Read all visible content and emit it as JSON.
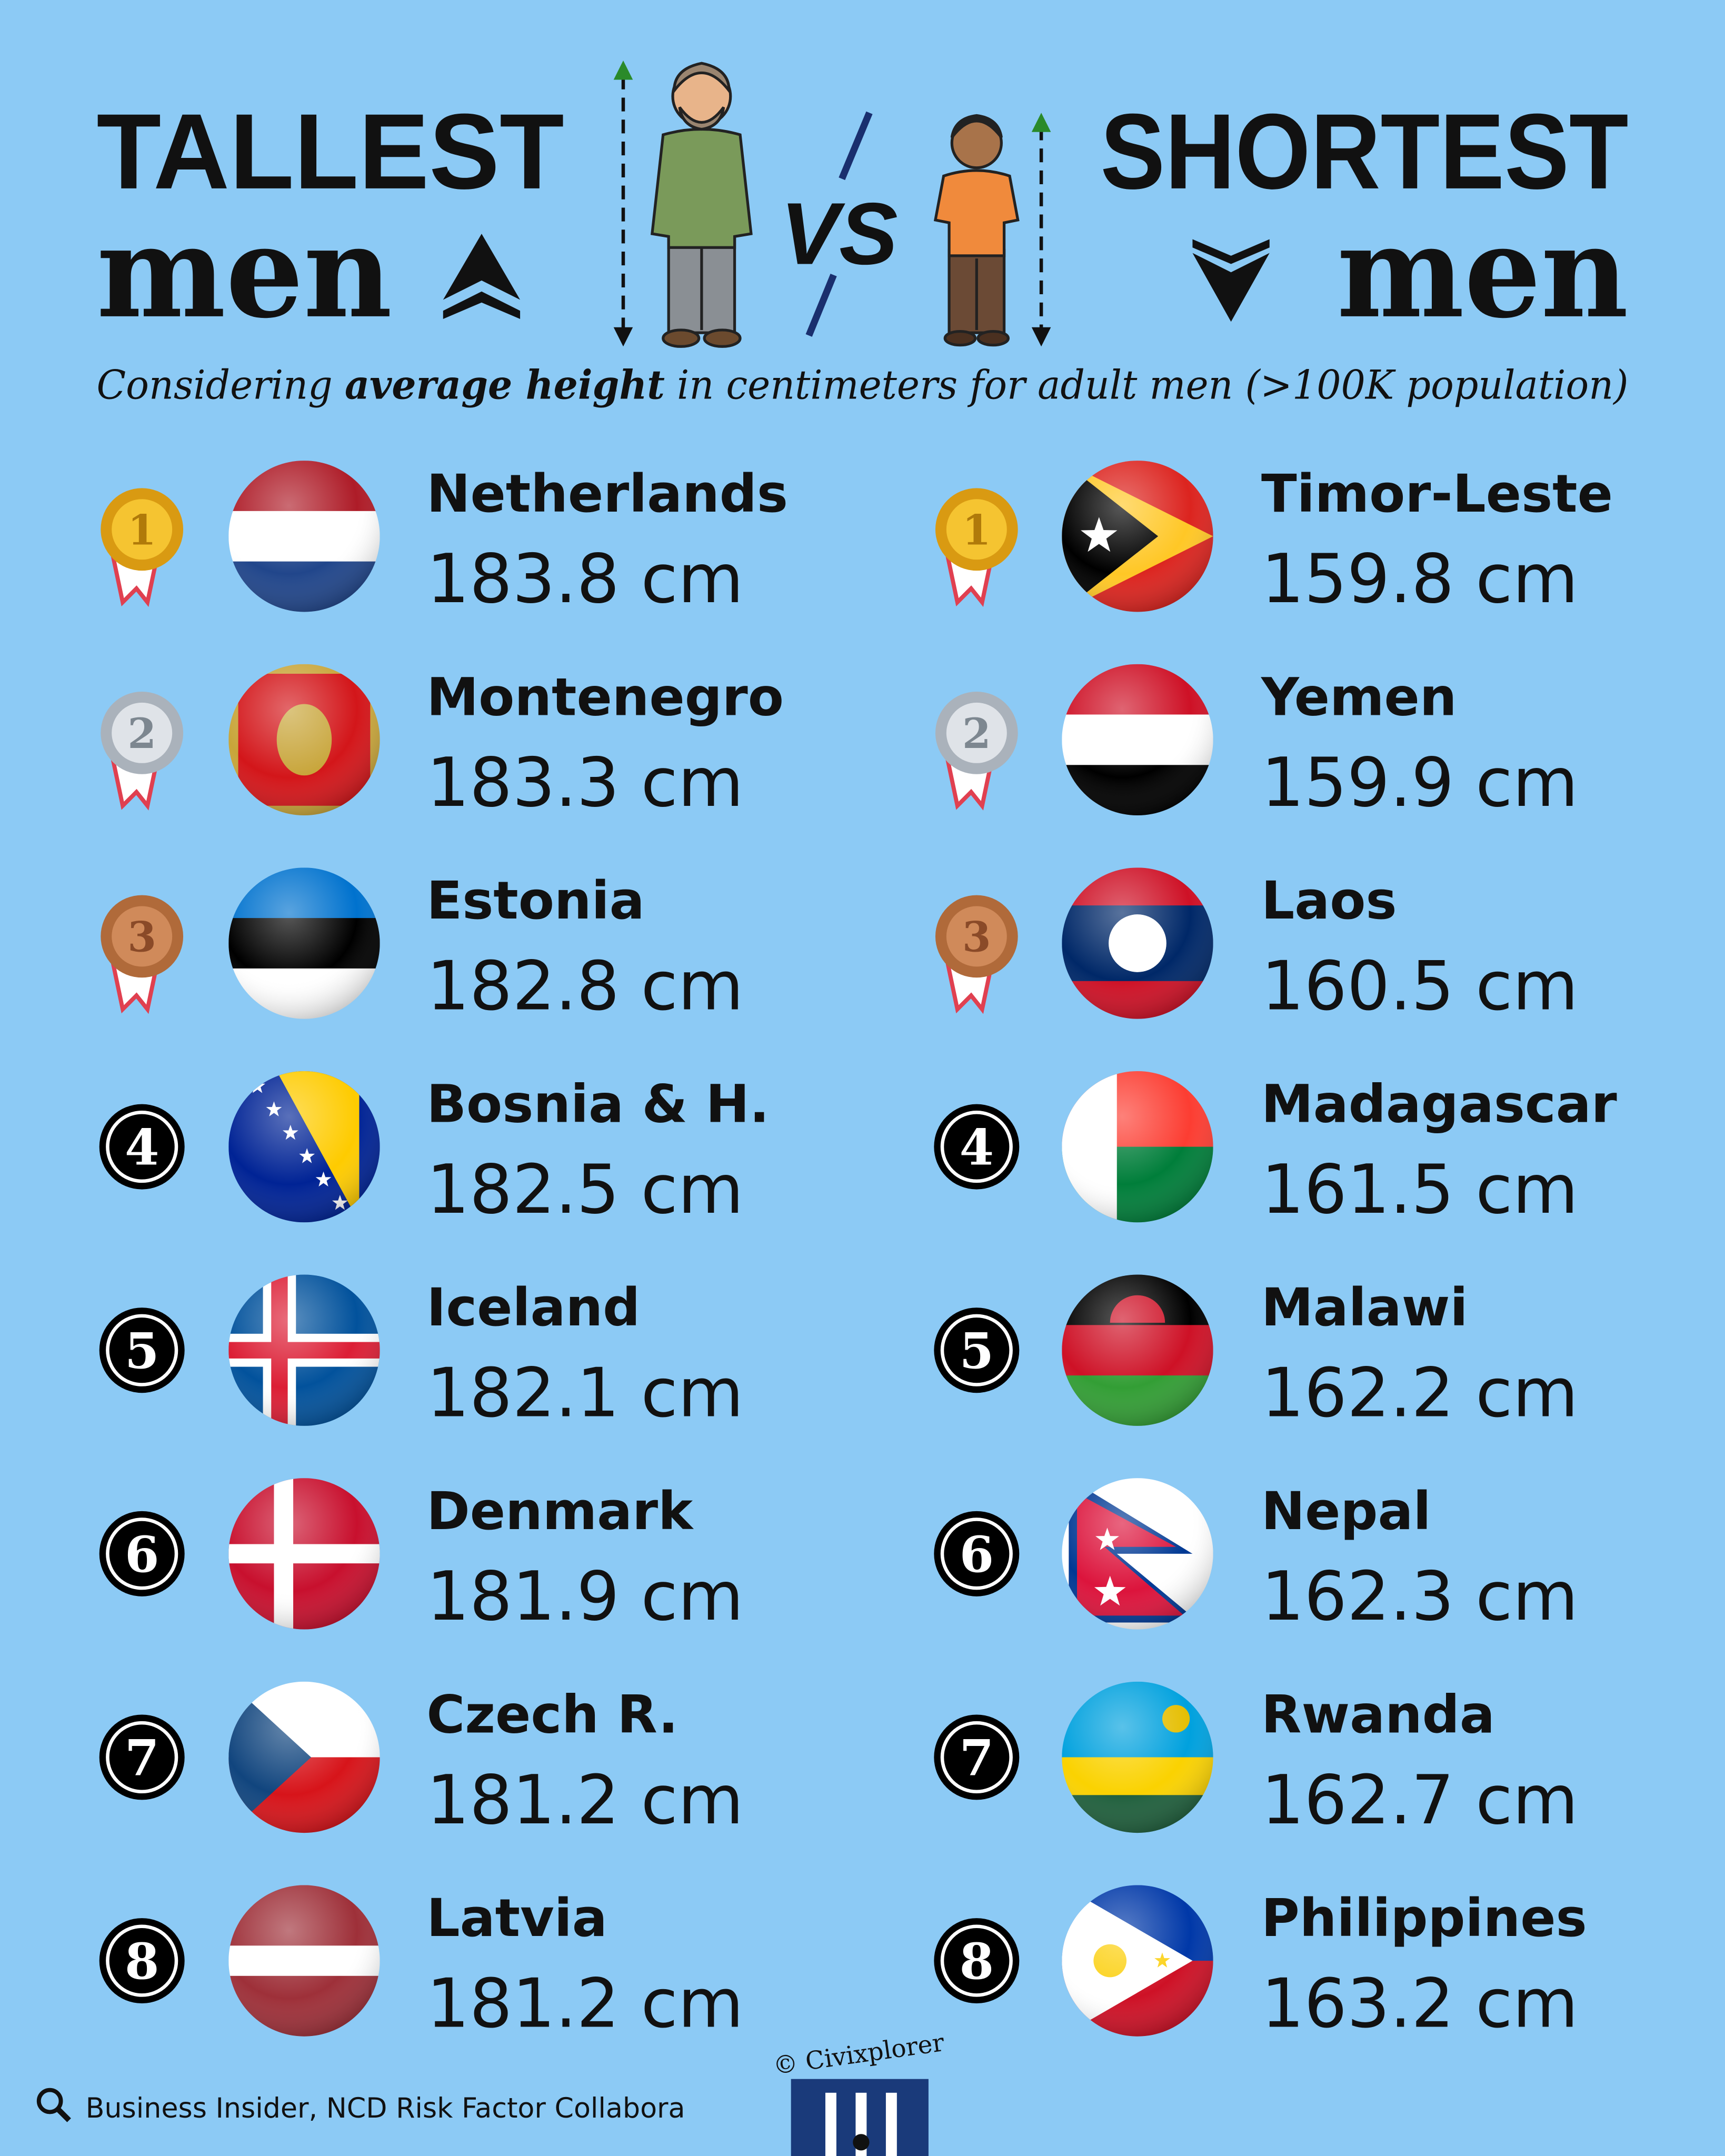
{
  "header": {
    "left_title": "TALLEST",
    "left_subtitle": "men",
    "vs": "VS",
    "right_title": "SHORTEST",
    "right_subtitle": "men"
  },
  "subtitle": {
    "before": "Considering ",
    "emphasis": "average height",
    "after": " in centimeters for adult men (>100K population)"
  },
  "lists": {
    "tallest": [
      {
        "rank": 1,
        "country": "Netherlands",
        "height": "183.8 cm"
      },
      {
        "rank": 2,
        "country": "Montenegro",
        "height": "183.3 cm"
      },
      {
        "rank": 3,
        "country": "Estonia",
        "height": "182.8 cm"
      },
      {
        "rank": 4,
        "country": "Bosnia & H.",
        "height": "182.5 cm"
      },
      {
        "rank": 5,
        "country": "Iceland",
        "height": "182.1 cm"
      },
      {
        "rank": 6,
        "country": "Denmark",
        "height": "181.9 cm"
      },
      {
        "rank": 7,
        "country": "Czech R.",
        "height": "181.2 cm"
      },
      {
        "rank": 8,
        "country": "Latvia",
        "height": "181.2 cm"
      }
    ],
    "shortest": [
      {
        "rank": 1,
        "country": "Timor-Leste",
        "height": "159.8 cm"
      },
      {
        "rank": 2,
        "country": "Yemen",
        "height": "159.9 cm"
      },
      {
        "rank": 3,
        "country": "Laos",
        "height": "160.5 cm"
      },
      {
        "rank": 4,
        "country": "Madagascar",
        "height": "161.5 cm"
      },
      {
        "rank": 5,
        "country": "Malawi",
        "height": "162.2 cm"
      },
      {
        "rank": 6,
        "country": "Nepal",
        "height": "162.3 cm"
      },
      {
        "rank": 7,
        "country": "Rwanda",
        "height": "162.7 cm"
      },
      {
        "rank": 8,
        "country": "Philippines",
        "height": "163.2 cm"
      }
    ]
  },
  "footer": {
    "source": "Business Insider, NCD Risk Factor Collabora",
    "credit": "© Civixplorer"
  }
}
